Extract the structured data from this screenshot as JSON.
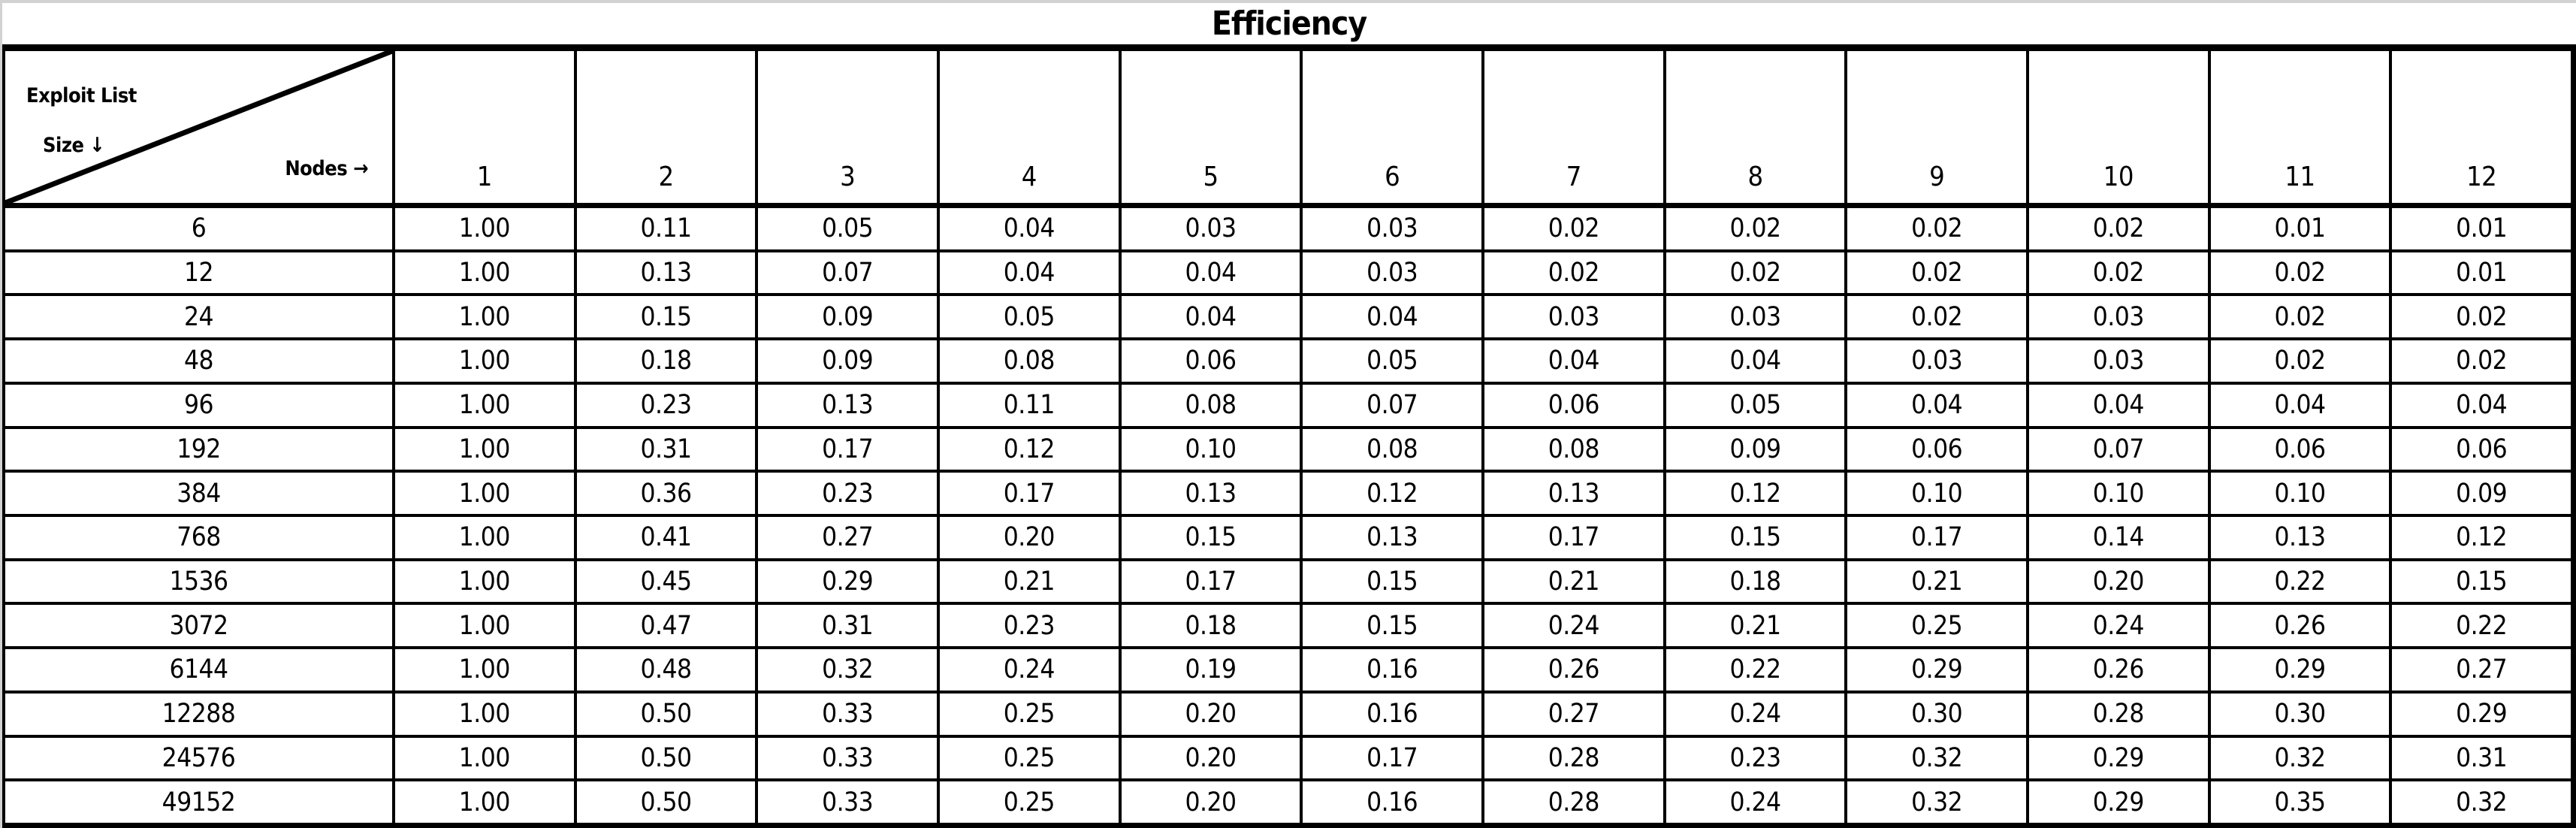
{
  "title": "Efficiency",
  "colors": {
    "border": "#000000",
    "cell_background": "#ffffff",
    "frame_background": "#d2d2d2",
    "text": "#000000"
  },
  "chart_data": {
    "type": "table",
    "title": "Efficiency",
    "corner_labels": {
      "top": "Exploit List",
      "row_axis": "Size ↓",
      "col_axis": "Nodes →"
    },
    "row_axis_label": "Exploit List Size",
    "col_axis_label": "Nodes",
    "columns": [
      "1",
      "2",
      "3",
      "4",
      "5",
      "6",
      "7",
      "8",
      "9",
      "10",
      "11",
      "12"
    ],
    "rows": [
      {
        "label": "6",
        "values": [
          "1.00",
          "0.11",
          "0.05",
          "0.04",
          "0.03",
          "0.03",
          "0.02",
          "0.02",
          "0.02",
          "0.02",
          "0.01",
          "0.01"
        ]
      },
      {
        "label": "12",
        "values": [
          "1.00",
          "0.13",
          "0.07",
          "0.04",
          "0.04",
          "0.03",
          "0.02",
          "0.02",
          "0.02",
          "0.02",
          "0.02",
          "0.01"
        ]
      },
      {
        "label": "24",
        "values": [
          "1.00",
          "0.15",
          "0.09",
          "0.05",
          "0.04",
          "0.04",
          "0.03",
          "0.03",
          "0.02",
          "0.03",
          "0.02",
          "0.02"
        ]
      },
      {
        "label": "48",
        "values": [
          "1.00",
          "0.18",
          "0.09",
          "0.08",
          "0.06",
          "0.05",
          "0.04",
          "0.04",
          "0.03",
          "0.03",
          "0.02",
          "0.02"
        ]
      },
      {
        "label": "96",
        "values": [
          "1.00",
          "0.23",
          "0.13",
          "0.11",
          "0.08",
          "0.07",
          "0.06",
          "0.05",
          "0.04",
          "0.04",
          "0.04",
          "0.04"
        ]
      },
      {
        "label": "192",
        "values": [
          "1.00",
          "0.31",
          "0.17",
          "0.12",
          "0.10",
          "0.08",
          "0.08",
          "0.09",
          "0.06",
          "0.07",
          "0.06",
          "0.06"
        ]
      },
      {
        "label": "384",
        "values": [
          "1.00",
          "0.36",
          "0.23",
          "0.17",
          "0.13",
          "0.12",
          "0.13",
          "0.12",
          "0.10",
          "0.10",
          "0.10",
          "0.09"
        ]
      },
      {
        "label": "768",
        "values": [
          "1.00",
          "0.41",
          "0.27",
          "0.20",
          "0.15",
          "0.13",
          "0.17",
          "0.15",
          "0.17",
          "0.14",
          "0.13",
          "0.12"
        ]
      },
      {
        "label": "1536",
        "values": [
          "1.00",
          "0.45",
          "0.29",
          "0.21",
          "0.17",
          "0.15",
          "0.21",
          "0.18",
          "0.21",
          "0.20",
          "0.22",
          "0.15"
        ]
      },
      {
        "label": "3072",
        "values": [
          "1.00",
          "0.47",
          "0.31",
          "0.23",
          "0.18",
          "0.15",
          "0.24",
          "0.21",
          "0.25",
          "0.24",
          "0.26",
          "0.22"
        ]
      },
      {
        "label": "6144",
        "values": [
          "1.00",
          "0.48",
          "0.32",
          "0.24",
          "0.19",
          "0.16",
          "0.26",
          "0.22",
          "0.29",
          "0.26",
          "0.29",
          "0.27"
        ]
      },
      {
        "label": "12288",
        "values": [
          "1.00",
          "0.50",
          "0.33",
          "0.25",
          "0.20",
          "0.16",
          "0.27",
          "0.24",
          "0.30",
          "0.28",
          "0.30",
          "0.29"
        ]
      },
      {
        "label": "24576",
        "values": [
          "1.00",
          "0.50",
          "0.33",
          "0.25",
          "0.20",
          "0.17",
          "0.28",
          "0.23",
          "0.32",
          "0.29",
          "0.32",
          "0.31"
        ]
      },
      {
        "label": "49152",
        "values": [
          "1.00",
          "0.50",
          "0.33",
          "0.25",
          "0.20",
          "0.16",
          "0.28",
          "0.24",
          "0.32",
          "0.29",
          "0.35",
          "0.32"
        ]
      }
    ]
  }
}
